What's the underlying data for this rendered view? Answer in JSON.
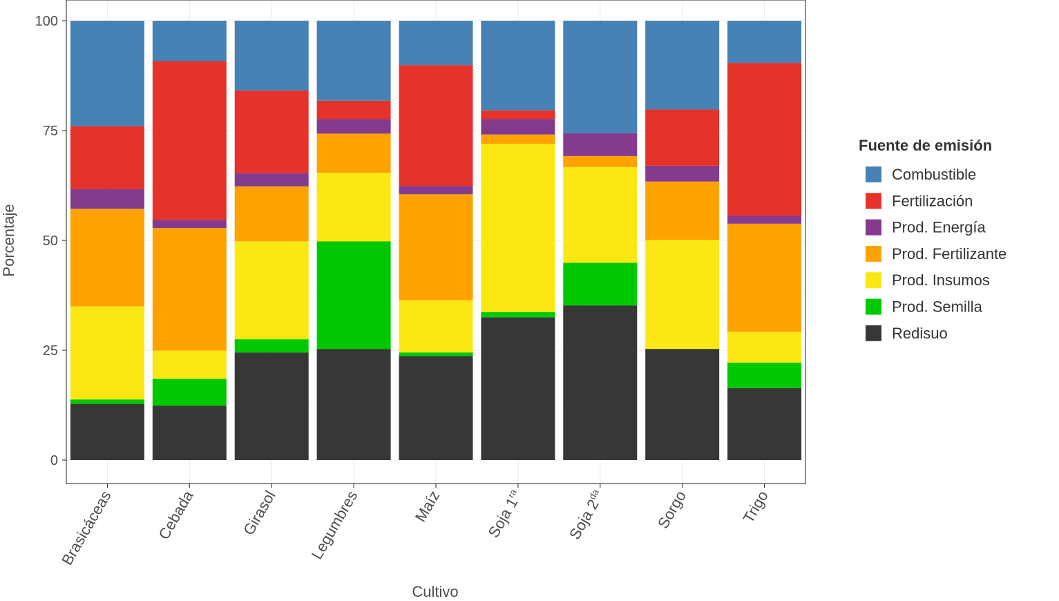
{
  "chart_data": {
    "type": "bar",
    "stacked": true,
    "title": "",
    "xlabel": "Cultivo",
    "ylabel": "Porcentaje",
    "ylim": [
      0,
      100
    ],
    "yticks": [
      "0",
      "25",
      "50",
      "75",
      "100"
    ],
    "ytick_values": [
      0,
      25,
      50,
      75,
      100
    ],
    "categories": [
      {
        "base": "Brasicáceas",
        "sup": ""
      },
      {
        "base": "Cebada",
        "sup": ""
      },
      {
        "base": "Girasol",
        "sup": ""
      },
      {
        "base": "Legumbres",
        "sup": ""
      },
      {
        "base": "Maíz",
        "sup": ""
      },
      {
        "base": "Soja 1",
        "sup": "ra"
      },
      {
        "base": "Soja 2",
        "sup": "da"
      },
      {
        "base": "Sorgo",
        "sup": ""
      },
      {
        "base": "Trigo",
        "sup": ""
      }
    ],
    "legend": {
      "title": "Fuente de emisión",
      "position": "right"
    },
    "series": [
      {
        "name": "Redisuo",
        "color": "#363835",
        "values": [
          12.8,
          12.4,
          24.5,
          25.3,
          23.7,
          32.5,
          35.2,
          25.3,
          16.4
        ]
      },
      {
        "name": "Prod. Semilla",
        "color": "#00c800",
        "values": [
          1.0,
          6.1,
          3.0,
          24.5,
          0.8,
          1.2,
          9.7,
          0.0,
          5.8
        ]
      },
      {
        "name": "Prod. Insumos",
        "color": "#fae714",
        "values": [
          21.2,
          6.4,
          22.3,
          15.6,
          11.9,
          38.3,
          21.8,
          24.8,
          7.0
        ]
      },
      {
        "name": "Prod. Fertilizante",
        "color": "#fea202",
        "values": [
          22.2,
          27.9,
          12.5,
          8.9,
          24.1,
          2.1,
          2.5,
          13.3,
          24.6
        ]
      },
      {
        "name": "Prod. Energía",
        "color": "#853b8d",
        "values": [
          4.5,
          1.9,
          3.0,
          3.3,
          1.9,
          3.5,
          5.2,
          3.6,
          1.8
        ]
      },
      {
        "name": "Fertilización",
        "color": "#e5332b",
        "values": [
          14.3,
          36.1,
          18.8,
          4.2,
          27.5,
          2.0,
          0.0,
          12.8,
          34.8
        ]
      },
      {
        "name": "Combustible",
        "color": "#4682b4",
        "values": [
          24.0,
          9.2,
          15.9,
          18.2,
          10.1,
          20.4,
          25.6,
          20.2,
          9.6
        ]
      }
    ],
    "legend_order": [
      "Combustible",
      "Fertilización",
      "Prod. Energía",
      "Prod. Fertilizante",
      "Prod. Insumos",
      "Prod. Semilla",
      "Redisuo"
    ]
  }
}
